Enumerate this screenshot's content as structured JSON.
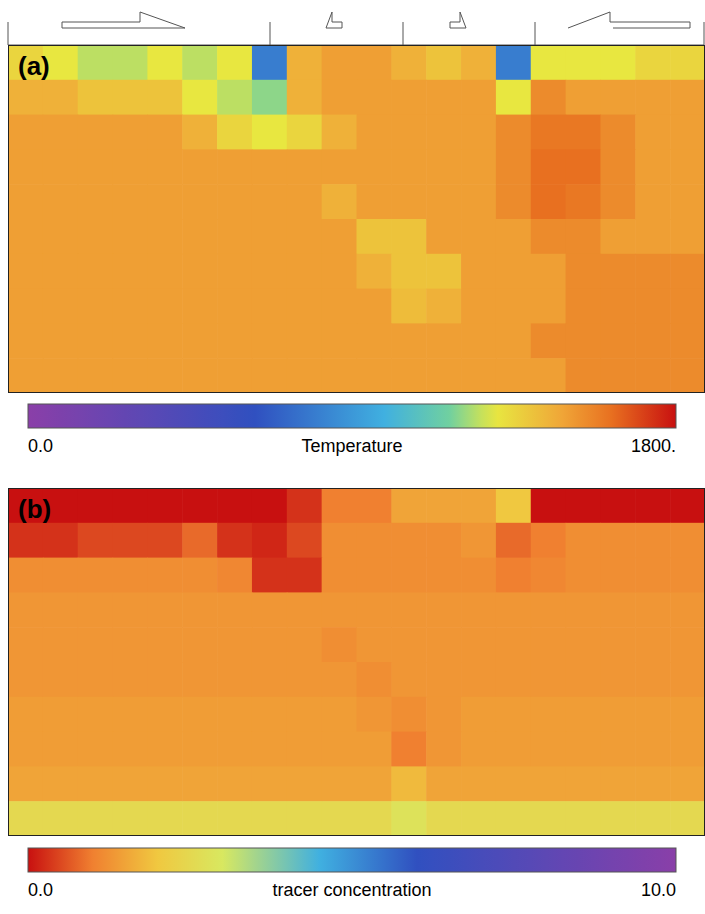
{
  "chart_data": [
    {
      "type": "heatmap",
      "label": "(a)",
      "tick_labels": false,
      "cells": [
        [
          1350,
          1300,
          1250,
          1250,
          1300,
          1250,
          1300,
          800,
          1450,
          1500,
          1500,
          1450,
          1400,
          1450,
          800,
          1300,
          1300,
          1300,
          1350,
          1350
        ],
        [
          1450,
          1450,
          1400,
          1400,
          1400,
          1300,
          1250,
          1200,
          1450,
          1500,
          1500,
          1500,
          1500,
          1500,
          1300,
          1550,
          1500,
          1500,
          1500,
          1500
        ],
        [
          1500,
          1500,
          1500,
          1500,
          1500,
          1450,
          1350,
          1300,
          1350,
          1450,
          1500,
          1500,
          1500,
          1500,
          1550,
          1600,
          1600,
          1550,
          1500,
          1500
        ],
        [
          1500,
          1500,
          1500,
          1500,
          1500,
          1500,
          1500,
          1500,
          1500,
          1500,
          1500,
          1500,
          1500,
          1500,
          1550,
          1620,
          1620,
          1550,
          1500,
          1500
        ],
        [
          1500,
          1500,
          1500,
          1500,
          1500,
          1500,
          1500,
          1500,
          1500,
          1450,
          1500,
          1500,
          1500,
          1500,
          1550,
          1620,
          1600,
          1550,
          1500,
          1500
        ],
        [
          1500,
          1500,
          1500,
          1500,
          1500,
          1500,
          1500,
          1500,
          1500,
          1500,
          1400,
          1400,
          1500,
          1500,
          1500,
          1550,
          1550,
          1500,
          1500,
          1500
        ],
        [
          1500,
          1500,
          1500,
          1500,
          1500,
          1500,
          1500,
          1500,
          1500,
          1500,
          1450,
          1400,
          1400,
          1500,
          1500,
          1500,
          1550,
          1550,
          1550,
          1550
        ],
        [
          1500,
          1500,
          1500,
          1500,
          1500,
          1500,
          1500,
          1500,
          1500,
          1500,
          1500,
          1420,
          1450,
          1500,
          1500,
          1500,
          1550,
          1550,
          1550,
          1550
        ],
        [
          1500,
          1500,
          1500,
          1500,
          1500,
          1500,
          1500,
          1500,
          1500,
          1500,
          1500,
          1500,
          1500,
          1500,
          1500,
          1550,
          1550,
          1550,
          1550,
          1550
        ],
        [
          1500,
          1500,
          1500,
          1500,
          1500,
          1500,
          1500,
          1500,
          1500,
          1500,
          1500,
          1500,
          1500,
          1500,
          1500,
          1500,
          1550,
          1550,
          1550,
          1550
        ]
      ],
      "colorbar": {
        "label": "Temperature",
        "range": [
          0,
          1800
        ],
        "ticks": [
          {
            "value": 0,
            "label": "0.0"
          },
          {
            "value": 1800,
            "label": "1800."
          }
        ]
      }
    },
    {
      "type": "heatmap",
      "label": "(b)",
      "tick_labels": false,
      "cells": [
        [
          0,
          0,
          0,
          0,
          0,
          0,
          0,
          0,
          0.3,
          1,
          1,
          1.5,
          1.5,
          1.5,
          2,
          0,
          0,
          0,
          0,
          0
        ],
        [
          0.3,
          0.3,
          0.5,
          0.5,
          0.5,
          0.8,
          0.3,
          0.2,
          0.5,
          1.2,
          1.2,
          1.2,
          1.2,
          1.3,
          0.8,
          1,
          1.2,
          1.2,
          1.2,
          1.2
        ],
        [
          1.2,
          1.2,
          1.2,
          1.2,
          1.2,
          1.2,
          1.1,
          0.3,
          0.3,
          1.2,
          1.2,
          1.2,
          1.2,
          1.2,
          1,
          1.1,
          1.2,
          1.2,
          1.2,
          1.2
        ],
        [
          1.3,
          1.3,
          1.3,
          1.3,
          1.3,
          1.3,
          1.3,
          1.3,
          1.3,
          1.3,
          1.3,
          1.3,
          1.3,
          1.3,
          1.3,
          1.3,
          1.3,
          1.3,
          1.3,
          1.3
        ],
        [
          1.3,
          1.3,
          1.3,
          1.3,
          1.3,
          1.3,
          1.3,
          1.3,
          1.3,
          1.2,
          1.3,
          1.3,
          1.3,
          1.3,
          1.3,
          1.3,
          1.3,
          1.3,
          1.3,
          1.3
        ],
        [
          1.3,
          1.3,
          1.3,
          1.3,
          1.3,
          1.3,
          1.3,
          1.3,
          1.3,
          1.3,
          1.2,
          1.3,
          1.3,
          1.3,
          1.3,
          1.3,
          1.3,
          1.3,
          1.3,
          1.3
        ],
        [
          1.4,
          1.4,
          1.4,
          1.4,
          1.4,
          1.4,
          1.4,
          1.4,
          1.4,
          1.4,
          1.3,
          1.2,
          1.3,
          1.4,
          1.4,
          1.4,
          1.4,
          1.4,
          1.4,
          1.4
        ],
        [
          1.4,
          1.4,
          1.4,
          1.4,
          1.4,
          1.4,
          1.4,
          1.4,
          1.4,
          1.4,
          1.4,
          1.0,
          1.3,
          1.4,
          1.4,
          1.4,
          1.4,
          1.4,
          1.4,
          1.4
        ],
        [
          1.5,
          1.5,
          1.5,
          1.5,
          1.5,
          1.5,
          1.5,
          1.5,
          1.5,
          1.5,
          1.5,
          1.8,
          1.5,
          1.5,
          1.5,
          1.5,
          1.5,
          1.5,
          1.5,
          1.5
        ],
        [
          2.5,
          2.5,
          2.5,
          2.5,
          2.5,
          2.5,
          2.5,
          2.5,
          2.5,
          2.5,
          2.5,
          2.8,
          2.5,
          2.5,
          2.5,
          2.5,
          2.5,
          2.5,
          2.5,
          2.5
        ]
      ],
      "colorbar": {
        "label": "tracer concentration",
        "range": [
          0,
          10
        ],
        "ticks": [
          {
            "value": 0,
            "label": "0.0"
          },
          {
            "value": 10,
            "label": "10.0"
          }
        ]
      }
    }
  ]
}
